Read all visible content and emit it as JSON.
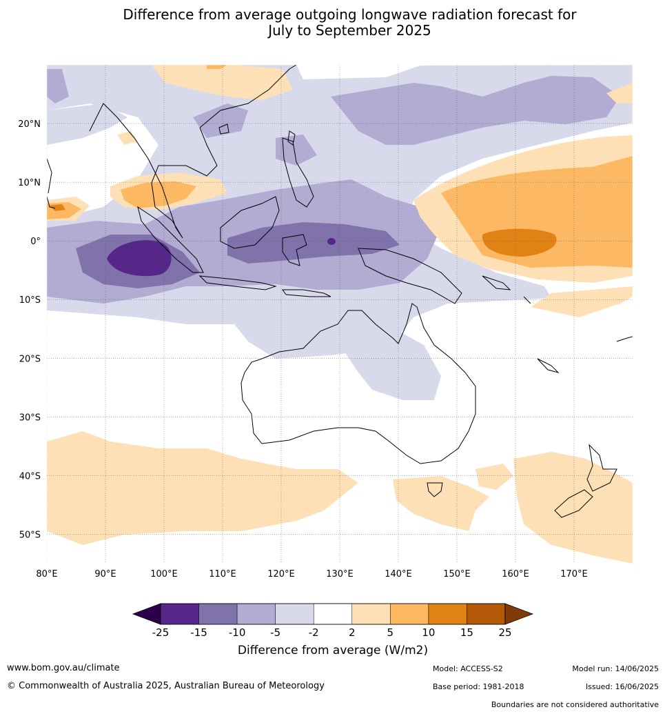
{
  "title_line1": "Difference from average outgoing longwave radiation forecast for",
  "title_line2": "July to September 2025",
  "map": {
    "lon_range": [
      80,
      180
    ],
    "lat_range": [
      -55,
      30
    ],
    "lat_ticks": [
      {
        "value": 20,
        "label": "20°N"
      },
      {
        "value": 10,
        "label": "10°N"
      },
      {
        "value": 0,
        "label": "0°"
      },
      {
        "value": -10,
        "label": "10°S"
      },
      {
        "value": -20,
        "label": "20°S"
      },
      {
        "value": -30,
        "label": "30°S"
      },
      {
        "value": -40,
        "label": "40°S"
      },
      {
        "value": -50,
        "label": "50°S"
      }
    ],
    "lon_ticks": [
      {
        "value": 80,
        "label": "80°E"
      },
      {
        "value": 90,
        "label": "90°E"
      },
      {
        "value": 100,
        "label": "100°E"
      },
      {
        "value": 110,
        "label": "110°E"
      },
      {
        "value": 120,
        "label": "120°E"
      },
      {
        "value": 130,
        "label": "130°E"
      },
      {
        "value": 140,
        "label": "140°E"
      },
      {
        "value": 150,
        "label": "150°E"
      },
      {
        "value": 160,
        "label": "160°E"
      },
      {
        "value": 170,
        "label": "170°E"
      }
    ]
  },
  "colorbar": {
    "title": "Difference from average (W/m2)",
    "labels": [
      "-25",
      "-15",
      "-10",
      "-5",
      "-2",
      "2",
      "5",
      "10",
      "15",
      "25"
    ],
    "colors": {
      "under": "#2d004b",
      "bins": [
        "#542788",
        "#8073ac",
        "#b2abd2",
        "#d8daeb",
        "#ffffff",
        "#fee0b6",
        "#fdb863",
        "#e08214",
        "#b35806"
      ],
      "over": "#7f3b08"
    }
  },
  "footer": {
    "website": "www.bom.gov.au/climate",
    "copyright": "© Commonwealth of Australia 2025, Australian Bureau of Meteorology",
    "model": "Model: ACCESS-S2",
    "base_period": "Base period: 1981-2018",
    "model_run": "Model run: 14/06/2025",
    "issued": "Issued: 16/06/2025",
    "boundaries_note": "Boundaries are not considered authoritative"
  }
}
